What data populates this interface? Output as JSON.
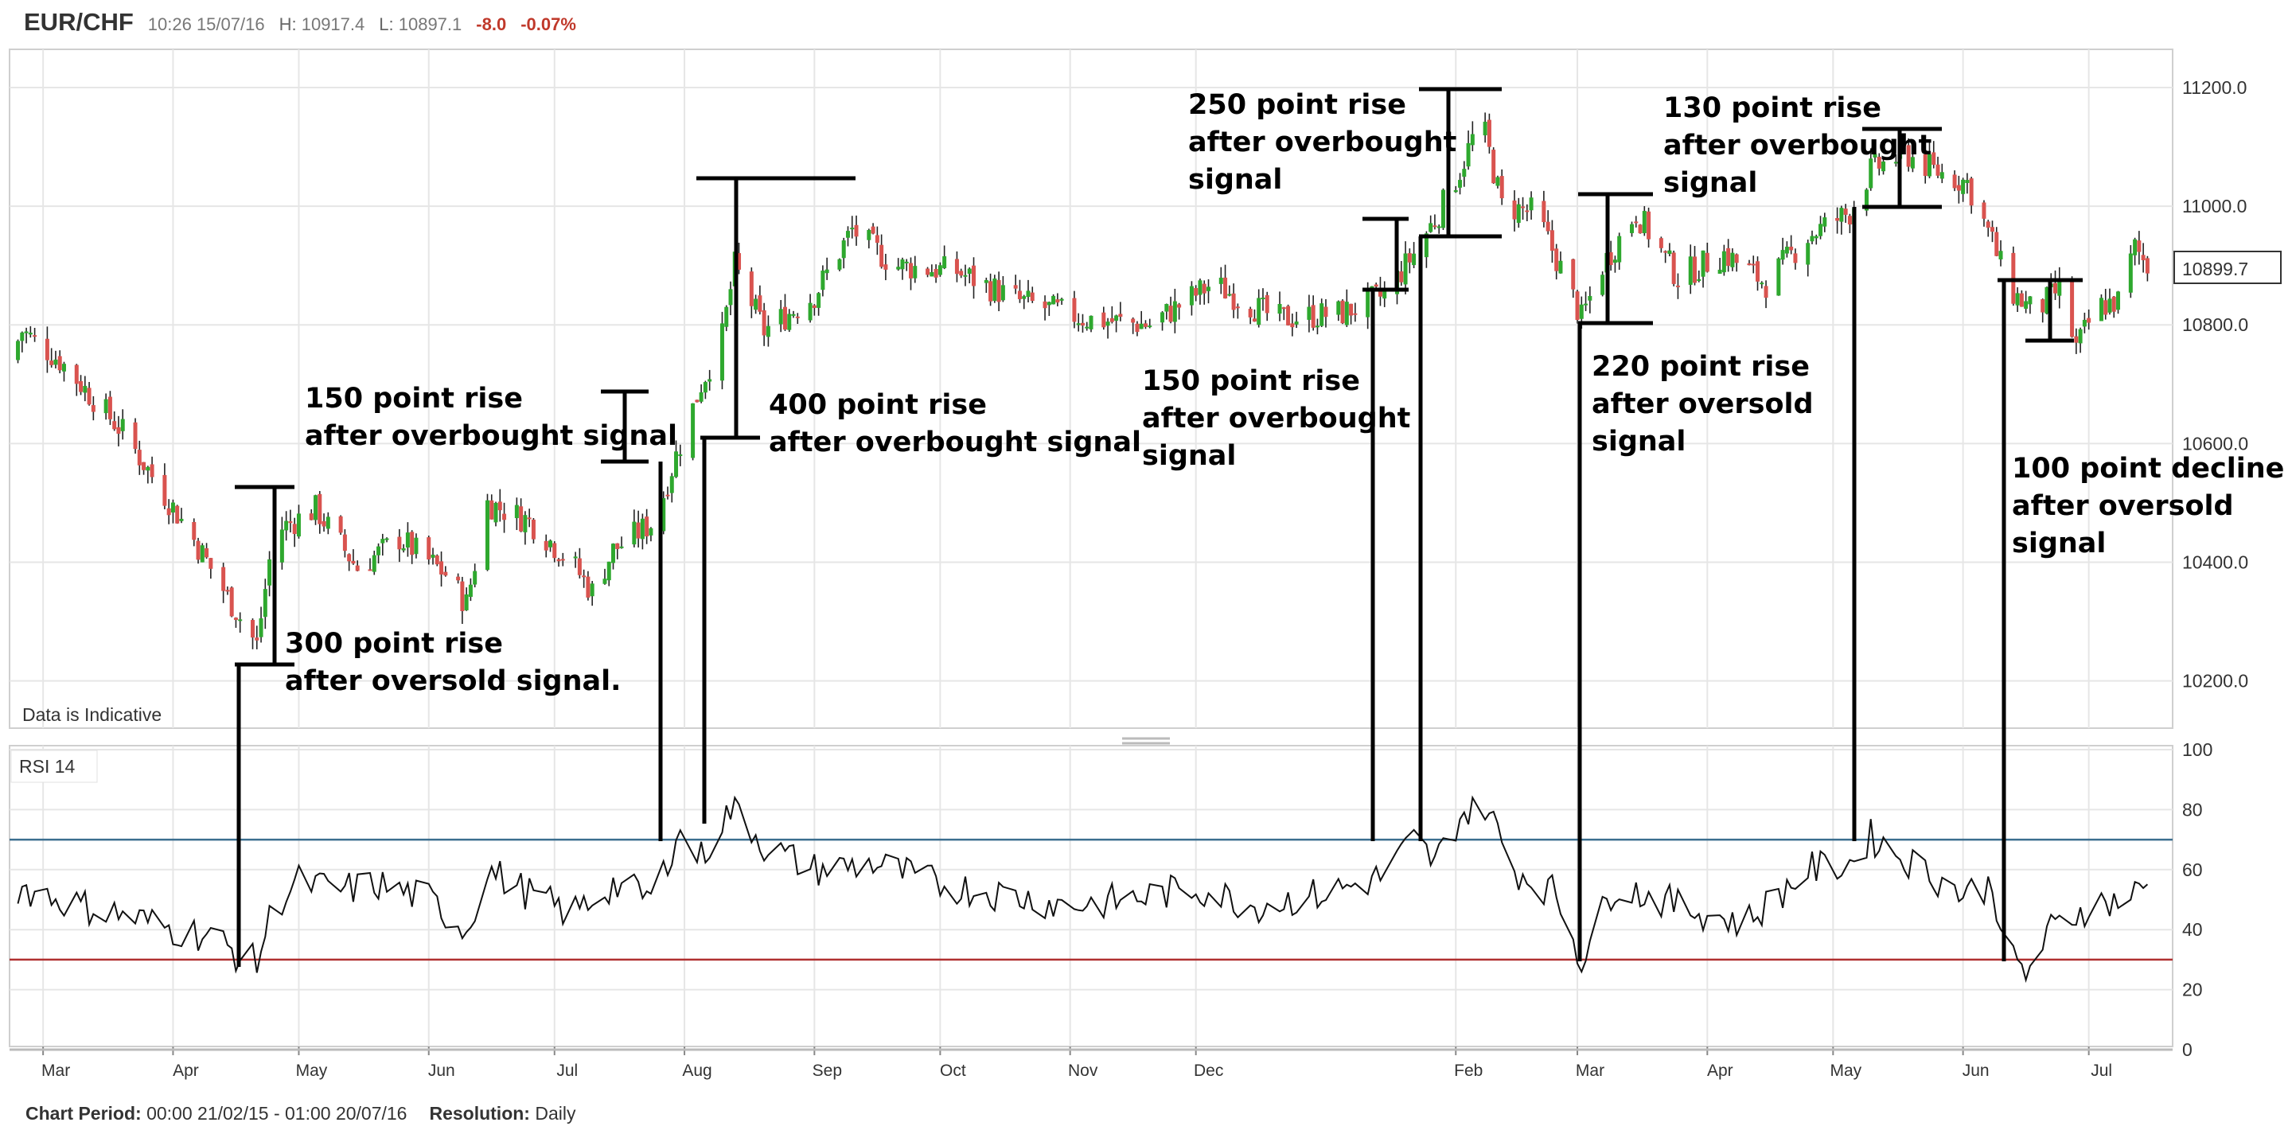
{
  "header": {
    "symbol": "EUR/CHF",
    "time": "10:26 15/07/16",
    "high_label": "H:",
    "high": "10917.4",
    "low_label": "L:",
    "low": "10897.1",
    "change": "-8.0",
    "change_pct": "-0.07%"
  },
  "footer": {
    "period_label": "Chart Period:",
    "period": "00:00 21/02/15 - 01:00 20/07/16",
    "resolution_label": "Resolution:",
    "resolution": "Daily"
  },
  "colors": {
    "up": "#2ea82e",
    "down": "#d9534f",
    "overbought": "#3b6e8f",
    "oversold": "#b03030",
    "grid": "#e6e6e6"
  },
  "chart_data": [
    {
      "type": "candlestick",
      "title": "EUR/CHF",
      "note": "Data is Indicative",
      "last_price_label": "10899.7",
      "y_ticks": [
        "11200.0",
        "11000.0",
        "10800.0",
        "10600.0",
        "10400.0",
        "10200.0"
      ],
      "ylim": [
        10110,
        11260
      ],
      "x_ticks": [
        "Mar",
        "Apr",
        "May",
        "Jun",
        "Jul",
        "Aug",
        "Sep",
        "Oct",
        "Nov",
        "Dec",
        "Feb",
        "Mar",
        "Apr",
        "May",
        "Jun",
        "Jul"
      ],
      "close_path": [
        [
          "2015-02-21",
          10740
        ],
        [
          "2015-02-24",
          10790
        ],
        [
          "2015-03-05",
          10740
        ],
        [
          "2015-03-20",
          10620
        ],
        [
          "2015-04-05",
          10450
        ],
        [
          "2015-04-15",
          10330
        ],
        [
          "2015-04-21",
          10260
        ],
        [
          "2015-04-25",
          10450
        ],
        [
          "2015-05-05",
          10490
        ],
        [
          "2015-05-15",
          10390
        ],
        [
          "2015-05-25",
          10440
        ],
        [
          "2015-06-05",
          10380
        ],
        [
          "2015-06-10",
          10330
        ],
        [
          "2015-06-15",
          10500
        ],
        [
          "2015-06-25",
          10470
        ],
        [
          "2015-07-05",
          10400
        ],
        [
          "2015-07-10",
          10350
        ],
        [
          "2015-07-15",
          10420
        ],
        [
          "2015-07-25",
          10470
        ],
        [
          "2015-07-30",
          10580
        ],
        [
          "2015-08-05",
          10700
        ],
        [
          "2015-08-10",
          10780
        ],
        [
          "2015-08-13",
          10900
        ],
        [
          "2015-08-20",
          10790
        ],
        [
          "2015-09-01",
          10850
        ],
        [
          "2015-09-10",
          10960
        ],
        [
          "2015-09-20",
          10900
        ],
        [
          "2015-10-05",
          10890
        ],
        [
          "2015-10-20",
          10840
        ],
        [
          "2015-11-05",
          10810
        ],
        [
          "2015-11-20",
          10800
        ],
        [
          "2015-12-05",
          10870
        ],
        [
          "2015-12-20",
          10810
        ],
        [
          "2016-01-05",
          10820
        ],
        [
          "2016-01-15",
          10850
        ],
        [
          "2016-01-22",
          10920
        ],
        [
          "2016-01-28",
          10990
        ],
        [
          "2016-02-02",
          11060
        ],
        [
          "2016-02-07",
          11150
        ],
        [
          "2016-02-12",
          11000
        ],
        [
          "2016-02-20",
          10990
        ],
        [
          "2016-02-27",
          10880
        ],
        [
          "2016-03-02",
          10810
        ],
        [
          "2016-03-07",
          10900
        ],
        [
          "2016-03-15",
          10990
        ],
        [
          "2016-03-25",
          10880
        ],
        [
          "2016-04-05",
          10920
        ],
        [
          "2016-04-15",
          10870
        ],
        [
          "2016-04-25",
          10950
        ],
        [
          "2016-05-05",
          10990
        ],
        [
          "2016-05-10",
          11060
        ],
        [
          "2016-05-18",
          11090
        ],
        [
          "2016-05-25",
          11060
        ],
        [
          "2016-06-02",
          11040
        ],
        [
          "2016-06-08",
          10940
        ],
        [
          "2016-06-12",
          10860
        ],
        [
          "2016-06-18",
          10820
        ],
        [
          "2016-06-24",
          10860
        ],
        [
          "2016-06-28",
          10760
        ],
        [
          "2016-07-03",
          10830
        ],
        [
          "2016-07-08",
          10840
        ],
        [
          "2016-07-12",
          10930
        ],
        [
          "2016-07-15",
          10900
        ]
      ]
    },
    {
      "type": "line",
      "title": "RSI 14",
      "y_ticks": [
        "100",
        "80",
        "60",
        "40",
        "20",
        "0"
      ],
      "ylim": [
        0,
        100
      ],
      "overbought": 70,
      "oversold": 30,
      "x": [
        "2015-02-21",
        "2015-03-01",
        "2015-03-10",
        "2015-03-20",
        "2015-04-01",
        "2015-04-10",
        "2015-04-18",
        "2015-04-21",
        "2015-04-25",
        "2015-05-01",
        "2015-05-10",
        "2015-05-20",
        "2015-06-01",
        "2015-06-10",
        "2015-06-15",
        "2015-06-25",
        "2015-07-05",
        "2015-07-15",
        "2015-07-25",
        "2015-07-30",
        "2015-08-05",
        "2015-08-10",
        "2015-08-13",
        "2015-08-20",
        "2015-09-01",
        "2015-09-15",
        "2015-10-01",
        "2015-10-15",
        "2015-11-01",
        "2015-11-15",
        "2015-12-01",
        "2015-12-15",
        "2016-01-01",
        "2016-01-15",
        "2016-01-22",
        "2016-01-27",
        "2016-02-02",
        "2016-02-08",
        "2016-02-15",
        "2016-02-25",
        "2016-03-02",
        "2016-03-10",
        "2016-03-25",
        "2016-04-10",
        "2016-04-25",
        "2016-05-05",
        "2016-05-10",
        "2016-05-20",
        "2016-06-01",
        "2016-06-08",
        "2016-06-12",
        "2016-06-16",
        "2016-06-22",
        "2016-07-01",
        "2016-07-10",
        "2016-07-15"
      ],
      "values": [
        55,
        52,
        48,
        45,
        40,
        38,
        30,
        29,
        48,
        56,
        53,
        55,
        50,
        40,
        60,
        52,
        45,
        55,
        50,
        72,
        64,
        76,
        82,
        68,
        60,
        62,
        55,
        52,
        48,
        50,
        54,
        48,
        52,
        58,
        70,
        62,
        78,
        82,
        60,
        52,
        30,
        55,
        48,
        42,
        60,
        62,
        71,
        62,
        52,
        55,
        30,
        25,
        40,
        48,
        50,
        55
      ]
    }
  ],
  "annotations": [
    {
      "lines": [
        "300 point rise",
        "after oversold signal."
      ]
    },
    {
      "lines": [
        "150 point rise",
        "after overbought signal"
      ]
    },
    {
      "lines": [
        "400 point rise",
        "after overbought signal"
      ]
    },
    {
      "lines": [
        "150 point rise",
        "after overbought",
        "signal"
      ]
    },
    {
      "lines": [
        "250 point rise",
        "after overbought",
        "signal"
      ]
    },
    {
      "lines": [
        "220 point rise",
        "after oversold",
        "signal"
      ]
    },
    {
      "lines": [
        "130 point rise",
        "after overbought",
        "signal"
      ]
    },
    {
      "lines": [
        "100 point decline",
        "after oversold",
        "signal"
      ]
    }
  ]
}
